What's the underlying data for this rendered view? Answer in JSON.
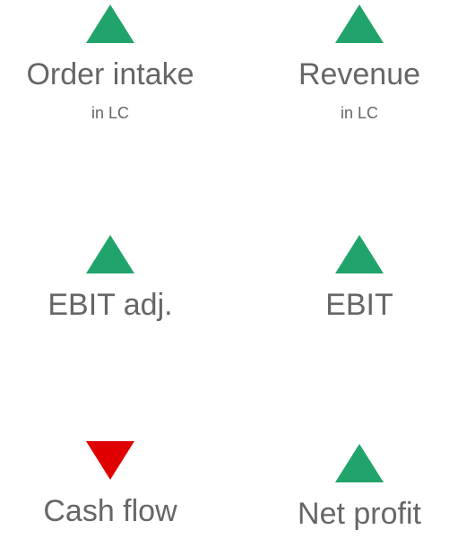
{
  "items": [
    {
      "label": "Order intake",
      "sublabel": "in LC",
      "direction": "up",
      "color": "#21a46b"
    },
    {
      "label": "Revenue",
      "sublabel": "in LC",
      "direction": "up",
      "color": "#21a46b"
    },
    {
      "label": "EBIT adj.",
      "direction": "up",
      "color": "#21a46b"
    },
    {
      "label": "EBIT",
      "direction": "up",
      "color": "#21a46b"
    },
    {
      "label": "Cash flow",
      "direction": "down",
      "color": "#e00000"
    },
    {
      "label": "Net profit",
      "direction": "up",
      "color": "#21a46b"
    }
  ]
}
